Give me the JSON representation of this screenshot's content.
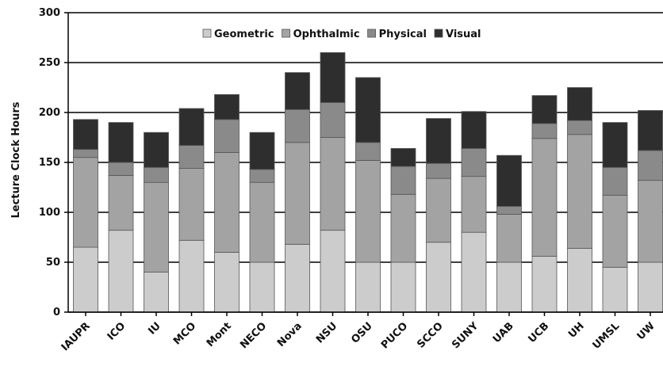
{
  "chart_data": {
    "type": "bar",
    "stacked": true,
    "ylabel": "Lecture Clock Hours",
    "ylim": [
      0,
      300
    ],
    "yticks": [
      0,
      50,
      100,
      150,
      200,
      250,
      300
    ],
    "grid": true,
    "legend_position": "top",
    "categories": [
      "IAUPR",
      "ICO",
      "IU",
      "MCO",
      "Mont",
      "NECO",
      "Nova",
      "NSU",
      "OSU",
      "PUCO",
      "SCCO",
      "SUNY",
      "UAB",
      "UCB",
      "UH",
      "UMSL",
      "UW"
    ],
    "series": [
      {
        "name": "Geometric",
        "color": "#cccccc",
        "values": [
          65,
          82,
          40,
          72,
          60,
          50,
          68,
          82,
          50,
          50,
          70,
          80,
          50,
          56,
          64,
          45,
          50
        ]
      },
      {
        "name": "Ophthalmic",
        "color": "#a3a3a3",
        "values": [
          90,
          55,
          90,
          72,
          100,
          80,
          102,
          93,
          102,
          68,
          64,
          56,
          48,
          118,
          114,
          72,
          82
        ]
      },
      {
        "name": "Physical",
        "color": "#8a8a8a",
        "values": [
          8,
          13,
          15,
          23,
          33,
          13,
          33,
          35,
          18,
          28,
          15,
          28,
          8,
          15,
          14,
          28,
          30
        ]
      },
      {
        "name": "Visual",
        "color": "#2e2e2e",
        "values": [
          30,
          40,
          35,
          37,
          25,
          37,
          37,
          50,
          65,
          18,
          45,
          37,
          51,
          28,
          33,
          45,
          40
        ]
      }
    ]
  }
}
